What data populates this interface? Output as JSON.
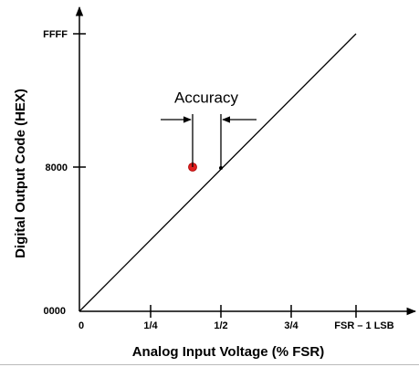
{
  "y_axis": {
    "label": "Digital Output Code (HEX)",
    "ticks": [
      "FFFF",
      "8000",
      "0000"
    ]
  },
  "x_axis": {
    "label": "Analog Input Voltage (% FSR)",
    "ticks": [
      "0",
      "1/4",
      "1/2",
      "3/4",
      "FSR – 1 LSB"
    ]
  },
  "annotation": "Accuracy"
}
